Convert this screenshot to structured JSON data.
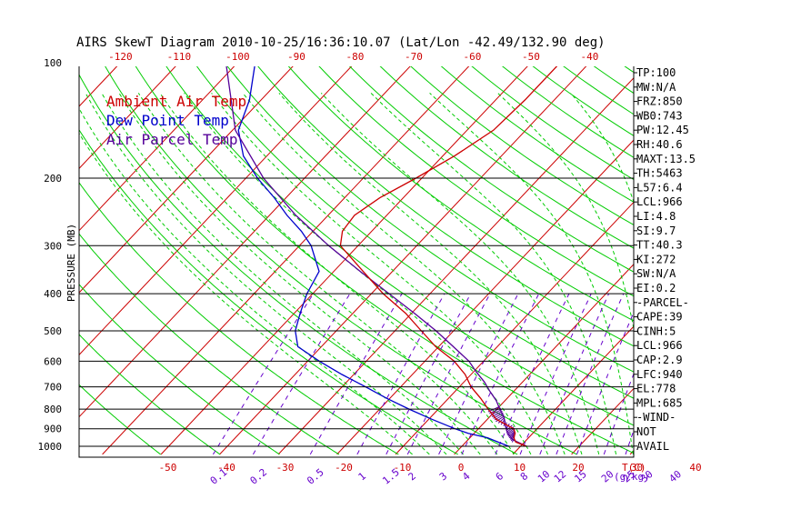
{
  "chart_data": {
    "type": "line",
    "title": "AIRS SkewT Diagram 2010-10-25/16:36:10.07 (Lat/Lon -42.49/132.90 deg)",
    "ylabel": "PRESSURE (MB)",
    "xlabel": "T(C)",
    "mixing_ratio_unit": "(g/kg)",
    "pressure_ticks": [
      "100",
      "200",
      "300",
      "400",
      "500",
      "600",
      "700",
      "800",
      "900",
      "1000"
    ],
    "top_temp_ticks": [
      "-120",
      "-110",
      "-100",
      "-90",
      "-80",
      "-70",
      "-60",
      "-50",
      "-40"
    ],
    "bottom_temp_ticks": [
      "-50",
      "-40",
      "-30",
      "-20",
      "-10",
      "0",
      "10",
      "20",
      "30",
      "40"
    ],
    "mixing_ratio_ticks": [
      "0.1",
      "0.2",
      "0.5",
      "1",
      "1.5",
      "2",
      "3",
      "4",
      "6",
      "8",
      "10",
      "12",
      "15",
      "20",
      "25",
      "30",
      "40"
    ],
    "ylim": [
      1000,
      100
    ],
    "grid": true,
    "legend": [
      "Ambient Air Temp",
      "Dew Point Temp",
      "Air Parcel Temp"
    ],
    "legend_position": "top-left",
    "colors": {
      "ambient": "#cc0000",
      "dewpoint": "#0000cc",
      "parcel": "#550099",
      "isotherm": "#cc0000",
      "dry_adiabat": "#00cc00",
      "moist_adiabat": "#00cc00",
      "mixing_ratio": "#6600cc",
      "frame": "#000000"
    },
    "series": [
      {
        "name": "Ambient Air Temp",
        "pressure": [
          1000,
          975,
          950,
          925,
          900,
          850,
          800,
          750,
          700,
          650,
          600,
          550,
          500,
          450,
          400,
          350,
          300,
          275,
          250,
          225,
          200,
          175,
          150,
          125,
          100
        ],
        "temperature": [
          11,
          8.5,
          7.5,
          7,
          6,
          1.5,
          -1.5,
          -4.5,
          -8,
          -11,
          -15,
          -20.5,
          -25.5,
          -31,
          -38,
          -45,
          -53,
          -55,
          -55.5,
          -54,
          -51,
          -48,
          -45.5,
          -45,
          -45
        ]
      },
      {
        "name": "Dew Point Temp",
        "pressure": [
          1000,
          975,
          950,
          925,
          900,
          850,
          800,
          750,
          700,
          650,
          600,
          550,
          500,
          450,
          400,
          350,
          300,
          275,
          250,
          225,
          200,
          175,
          150,
          125,
          100
        ],
        "dewpoint": [
          8,
          5.5,
          3,
          -1,
          -4,
          -9.5,
          -15,
          -20.5,
          -26,
          -32,
          -38,
          -44,
          -47,
          -49,
          -51,
          -52.5,
          -58,
          -62,
          -67,
          -72,
          -78,
          -84,
          -89,
          -92,
          -97
        ]
      },
      {
        "name": "Air Parcel Temp",
        "pressure": [
          1000,
          960,
          920,
          880,
          840,
          800,
          760,
          720,
          680,
          640,
          600,
          550,
          500,
          450,
          400,
          350,
          300,
          250,
          200,
          150,
          100
        ],
        "temperature": [
          11,
          7.5,
          5.5,
          4,
          2.5,
          0.5,
          -1.5,
          -4,
          -6.5,
          -9.5,
          -12.5,
          -17.5,
          -23,
          -29.5,
          -37,
          -45.5,
          -55,
          -65.5,
          -77,
          -89.5,
          -102
        ]
      }
    ]
  },
  "indices": [
    "TP:100",
    "MW:N/A",
    "FRZ:850",
    "WB0:743",
    "PW:12.45",
    "RH:40.6",
    "MAXT:13.5",
    "TH:5463",
    "L57:6.4",
    "LCL:966",
    "LI:4.8",
    "SI:9.7",
    "TT:40.3",
    "KI:272",
    "SW:N/A",
    "EI:0.2",
    "-PARCEL-",
    "CAPE:39",
    "CINH:5",
    "LCL:966",
    "CAP:2.9",
    "LFC:940",
    "EL:778",
    "MPL:685",
    "-WIND-",
    "NOT",
    "AVAIL"
  ]
}
